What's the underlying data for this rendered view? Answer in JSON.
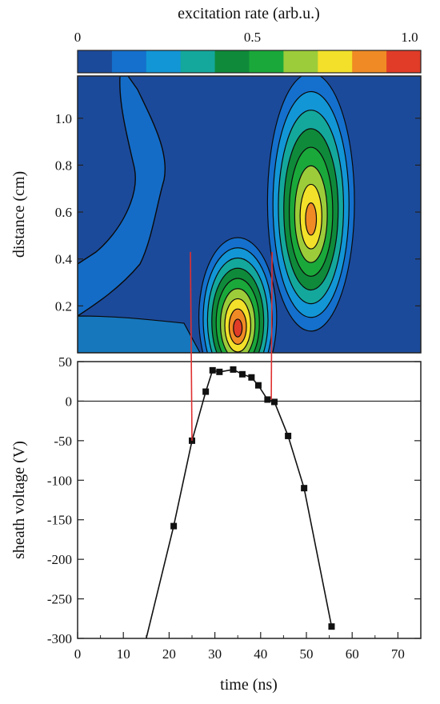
{
  "chart_data": [
    {
      "type": "heatmap",
      "title": "excitation rate (arb.u.)",
      "colorbar": {
        "ticks": [
          "0",
          "0.5",
          "1.0"
        ],
        "colors": [
          "#1c4a9a",
          "#1470cc",
          "#1296d6",
          "#14a89c",
          "#0f8a3a",
          "#1aa83a",
          "#9ccc3a",
          "#f2e02a",
          "#f08a24",
          "#e03c28"
        ]
      },
      "xlim": [
        0,
        75
      ],
      "ylim": [
        0,
        1.18
      ],
      "ylabel": "distance (cm)",
      "y_ticks": [
        "0.2",
        "0.4",
        "0.6",
        "0.8",
        "1.0"
      ],
      "y_tick_values": [
        0.2,
        0.4,
        0.6,
        0.8,
        1.0
      ],
      "background_color": "#1c4a9a",
      "peaks": [
        {
          "t": 35,
          "d": 0.1,
          "level": 1.0
        },
        {
          "t": 51,
          "d": 0.56,
          "level": 0.85
        }
      ],
      "marker_lines_t": [
        25,
        42.5
      ],
      "marker_line_color": "#e03030"
    },
    {
      "type": "line",
      "xlabel": "time (ns)",
      "ylabel": "sheath voltage (V)",
      "xlim": [
        0,
        75
      ],
      "ylim": [
        -300,
        50
      ],
      "x_ticks": [
        "0",
        "10",
        "20",
        "30",
        "40",
        "50",
        "60",
        "70"
      ],
      "x_tick_values": [
        0,
        10,
        20,
        30,
        40,
        50,
        60,
        70
      ],
      "y_ticks": [
        "50",
        "0",
        "-50",
        "-100",
        "-150",
        "-200",
        "-250",
        "-300"
      ],
      "y_tick_values": [
        50,
        0,
        -50,
        -100,
        -150,
        -200,
        -250,
        -300
      ],
      "zero_line": 0,
      "series": [
        {
          "x": [
            15,
            21,
            25,
            28,
            29.5,
            31,
            34,
            36,
            38,
            39.5,
            41.5,
            43,
            46,
            49.5,
            55.5
          ],
          "y": [
            -300,
            -158,
            -50,
            12,
            39,
            37,
            40,
            34,
            30,
            20,
            2,
            -1,
            -44,
            -110,
            -285
          ],
          "markers": [
            false,
            true,
            true,
            true,
            true,
            true,
            true,
            true,
            true,
            true,
            true,
            true,
            true,
            true,
            true
          ]
        }
      ]
    }
  ]
}
